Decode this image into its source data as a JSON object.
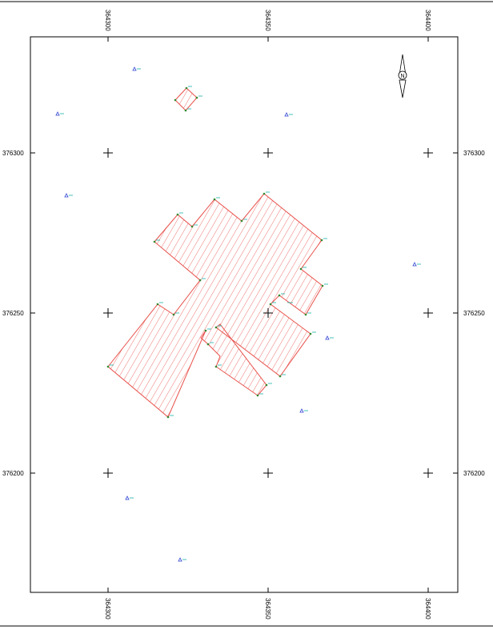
{
  "map": {
    "x_ticks": [
      "364300",
      "364350",
      "364400"
    ],
    "y_ticks": [
      "376300",
      "376250",
      "376200"
    ],
    "north_label": "N",
    "colors": {
      "frame": "#000000",
      "parcel_outline": "#e8504a",
      "hatch": "#e8504a",
      "vertex_marker": "#2e8b2e",
      "vertex_label": "#18b0a8",
      "benchmark": "#2a3fd0",
      "benchmark_label": "#18b0a8"
    },
    "features": {
      "parcel": "hatched-polygon",
      "small_parcel": "hatched-polygon",
      "benchmarks": "triangle-markers",
      "grid_crosses": "plus-markers"
    }
  }
}
